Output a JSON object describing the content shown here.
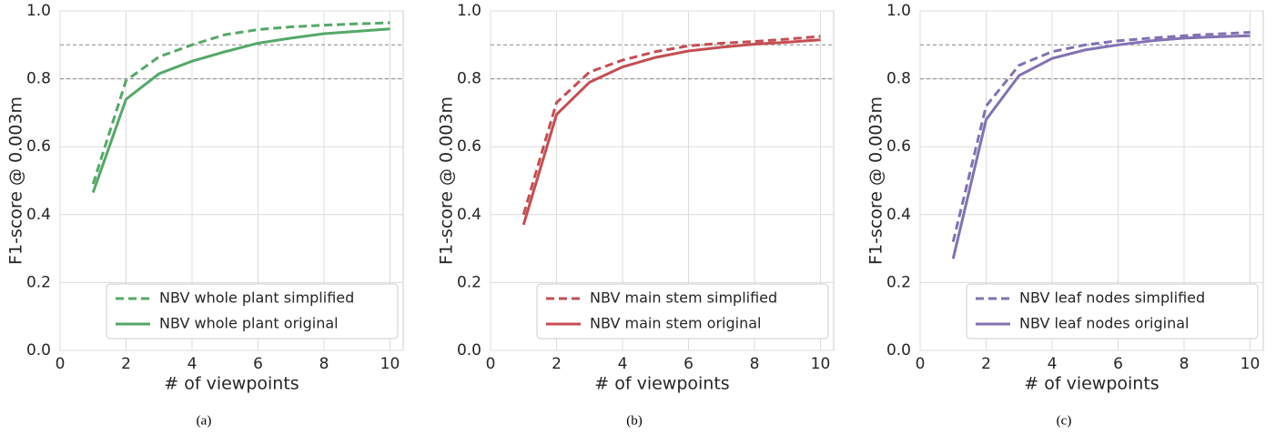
{
  "chart_data": [
    {
      "type": "line",
      "caption": "(a)",
      "x_label": "# of viewpoints",
      "y_label": "F1-score @ 0.003m",
      "x": [
        1,
        2,
        3,
        4,
        5,
        6,
        7,
        8,
        9,
        10
      ],
      "series": [
        {
          "name": "NBV whole plant simplified",
          "color": "#55a868",
          "dash": true,
          "values": [
            0.49,
            0.795,
            0.865,
            0.9,
            0.93,
            0.945,
            0.953,
            0.958,
            0.962,
            0.965
          ]
        },
        {
          "name": "NBV whole plant original",
          "color": "#55a868",
          "dash": false,
          "values": [
            0.465,
            0.74,
            0.815,
            0.852,
            0.88,
            0.905,
            0.92,
            0.933,
            0.94,
            0.947
          ]
        }
      ],
      "xlim": [
        0,
        10.4
      ],
      "xticks": [
        0,
        2,
        4,
        6,
        8,
        10
      ],
      "ylim": [
        0,
        1
      ],
      "yticks": [
        {
          "value": 0,
          "label": "0.0"
        },
        {
          "value": 0.2,
          "label": "0.2"
        },
        {
          "value": 0.4,
          "label": "0.4"
        },
        {
          "value": 0.6,
          "label": "0.6"
        },
        {
          "value": 0.8,
          "label": "0.8"
        },
        {
          "value": 1,
          "label": "1.0"
        }
      ],
      "reference_lines": [
        0.8,
        0.9
      ],
      "grid": true,
      "legend": "lower right"
    },
    {
      "type": "line",
      "caption": "(b)",
      "x_label": "# of viewpoints",
      "y_label": "F1-score @ 0.003m",
      "x": [
        1,
        2,
        3,
        4,
        5,
        6,
        7,
        8,
        9,
        10
      ],
      "series": [
        {
          "name": "NBV main stem simplified",
          "color": "#c44e52",
          "dash": true,
          "values": [
            0.4,
            0.73,
            0.82,
            0.855,
            0.88,
            0.897,
            0.905,
            0.91,
            0.917,
            0.925
          ]
        },
        {
          "name": "NBV main stem original",
          "color": "#c44e52",
          "dash": false,
          "values": [
            0.37,
            0.695,
            0.79,
            0.835,
            0.863,
            0.882,
            0.893,
            0.902,
            0.908,
            0.915
          ]
        }
      ],
      "xlim": [
        0,
        10.4
      ],
      "xticks": [
        0,
        2,
        4,
        6,
        8,
        10
      ],
      "ylim": [
        0,
        1
      ],
      "yticks": [
        {
          "value": 0,
          "label": "0.0"
        },
        {
          "value": 0.2,
          "label": "0.2"
        },
        {
          "value": 0.4,
          "label": "0.4"
        },
        {
          "value": 0.6,
          "label": "0.6"
        },
        {
          "value": 0.8,
          "label": "0.8"
        },
        {
          "value": 1,
          "label": "1.0"
        }
      ],
      "reference_lines": [
        0.8,
        0.9
      ],
      "grid": true,
      "legend": "lower right"
    },
    {
      "type": "line",
      "caption": "(c)",
      "x_label": "# of viewpoints",
      "y_label": "F1-score @ 0.003m",
      "x": [
        1,
        2,
        3,
        4,
        5,
        6,
        7,
        8,
        9,
        10
      ],
      "series": [
        {
          "name": "NBV leaf nodes simplified",
          "color": "#8172b2",
          "dash": true,
          "values": [
            0.32,
            0.72,
            0.84,
            0.88,
            0.9,
            0.912,
            0.92,
            0.927,
            0.932,
            0.937
          ]
        },
        {
          "name": "NBV leaf nodes original",
          "color": "#8172b2",
          "dash": false,
          "values": [
            0.27,
            0.68,
            0.81,
            0.86,
            0.885,
            0.9,
            0.912,
            0.92,
            0.924,
            0.927
          ]
        }
      ],
      "xlim": [
        0,
        10.4
      ],
      "xticks": [
        0,
        2,
        4,
        6,
        8,
        10
      ],
      "ylim": [
        0,
        1
      ],
      "yticks": [
        {
          "value": 0,
          "label": "0.0"
        },
        {
          "value": 0.2,
          "label": "0.2"
        },
        {
          "value": 0.4,
          "label": "0.4"
        },
        {
          "value": 0.6,
          "label": "0.6"
        },
        {
          "value": 0.8,
          "label": "0.8"
        },
        {
          "value": 1,
          "label": "1.0"
        }
      ],
      "reference_lines": [
        0.8,
        0.9
      ],
      "grid": true,
      "legend": "lower right"
    }
  ]
}
